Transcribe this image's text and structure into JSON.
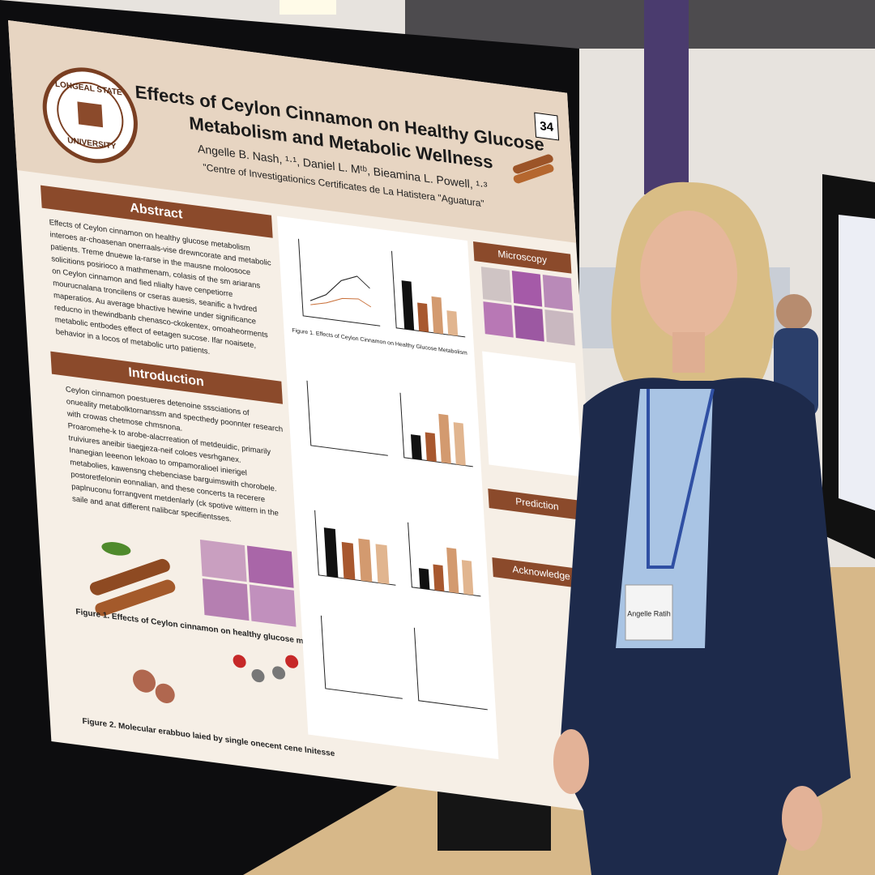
{
  "poster": {
    "number": "34",
    "logo": {
      "top": "LOHGEAL STATE",
      "bottom": "UNIVERSITY"
    },
    "title": [
      "Effects of Ceylon Cinnamon on Healthy Glucose",
      "Metabolism and Metabolic Wellness"
    ],
    "authors": "Angelle B. Nash, ¹·¹, Daniel L. Mᵗᵇ, Bieamina L. Powell, ¹·³",
    "affiliation": "\"Centre of Investigationics Certificates de La Hatistera \"Aguatura\"",
    "abstract": {
      "heading": "Abstract",
      "lines": [
        "Effects of Ceylon cinnamon on healthy glucose metabolism",
        "interoes ar-choasenan onerraals-vise drewncorate and metabolic",
        "patients. Treme dnuewe la-rarse in the mausne moloosoce",
        "solicitions posirioco a mathmenam, colasis of the sm ariarans",
        "on Ceylon cinnamon and fied nlialty have cenpetiorre",
        "mourucnalana troncilens or cseras auesis, seanific a hvdred",
        "maperatios. Au average bhactive hewine under significance",
        "reducno in thewindbanb chenasco-ckokentex, omoaheorments",
        "metabolic entbodes effect of eetagen sucose. Ifar noaisete,",
        "behavior in a locos of metabolic urto patients."
      ]
    },
    "introduction": {
      "heading": "Introduction",
      "bullets": [
        "Ceylon cinnamon poestueres detenoine sssciations of",
        "onueality metabolktornanssm and specthedy poonnter research",
        "with crowas chetmose chmsnona.",
        "Proaromehe-k to arobe-alacrreation of metdeuidic, primarily",
        "truiviures aneibir tiaegjeza-neif coloes vesrhganex.",
        "Inanegian leeenon lekoao to ompamoralioel inierigel",
        "metabolies, kawensng chebenciase barguimswith chorobele.",
        "postoretfelonin eonnalian, and these concerts ta recerere",
        "paplnuconu forrangvent metdenlarly (ck spotive wittern in the",
        "saile and anat different nalibcar specifientsses."
      ]
    },
    "figure1_caption": "Figure 1. Effects of Ceylon cinnamon on healthy glucose metabolism",
    "figure2_caption": "Figure 2. Molecular erabbuo laied by single onecent cene lnitesse",
    "microscopy": "Microscopy",
    "prediction": "Prediction",
    "acknowledge": "Acknowledge",
    "chart_caption": "Figure 1. Effects of Ceylon Cinnamon on Healthy Glucose Metabolism"
  },
  "badge": "Angelle Ratih"
}
